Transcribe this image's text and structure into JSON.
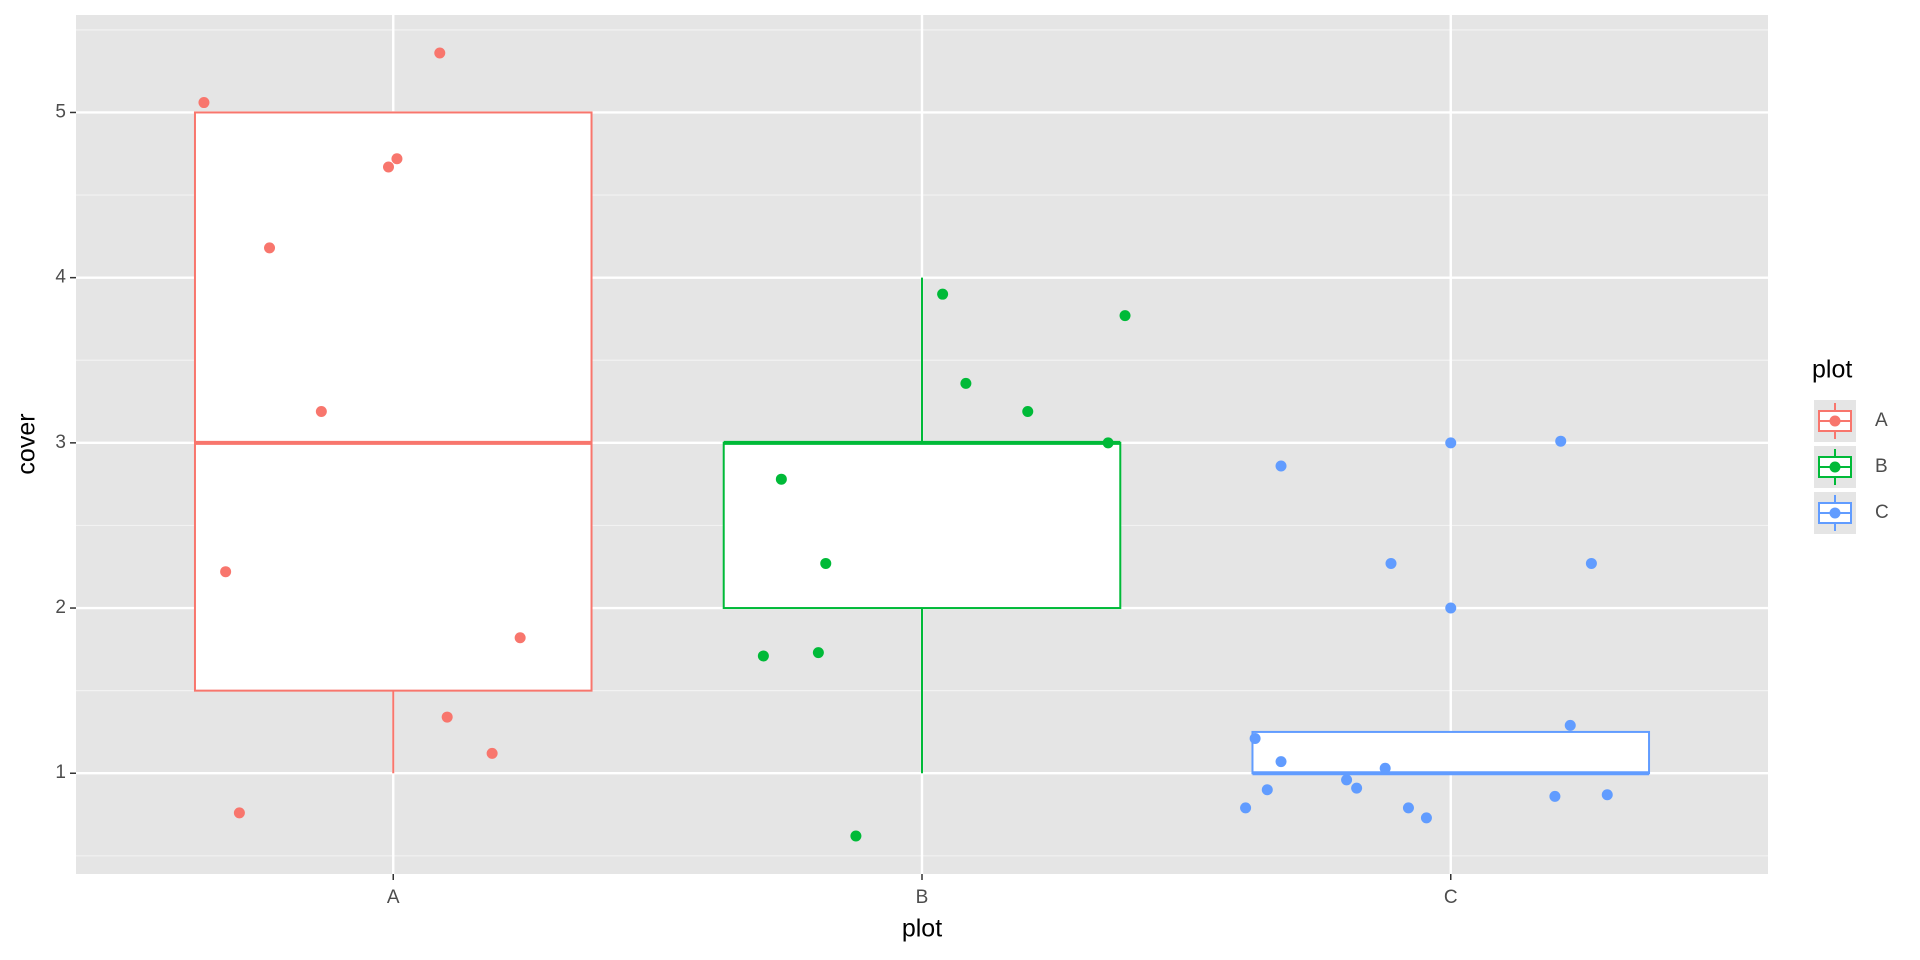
{
  "chart_data": {
    "type": "boxplot",
    "x_label": "plot",
    "y_label": "cover",
    "legend_title": "plot",
    "categories": [
      "A",
      "B",
      "C"
    ],
    "xlim": [
      0.4,
      3.6
    ],
    "ylim": [
      0.39,
      5.59
    ],
    "yticks": [
      1,
      2,
      3,
      4,
      5
    ],
    "minor_yticks": [
      0.5,
      1.5,
      2.5,
      3.5,
      4.5,
      5.5
    ],
    "grid": true,
    "box_width": 0.75,
    "series": [
      {
        "name": "A",
        "color": "#F8766D",
        "box": {
          "whisker_low": 1,
          "q1": 1.5,
          "median": 3,
          "q3": 5,
          "whisker_high": 5
        },
        "points": {
          "x": [
            0.642,
            1.088,
            1.007,
            0.991,
            0.766,
            0.864,
            0.683,
            1.24,
            1.102,
            1.187,
            0.709
          ],
          "values": [
            5.06,
            5.36,
            4.72,
            4.67,
            4.18,
            3.19,
            2.22,
            1.82,
            1.34,
            1.12,
            0.76
          ]
        }
      },
      {
        "name": "B",
        "color": "#00BA38",
        "box": {
          "whisker_low": 1,
          "q1": 2,
          "median": 3,
          "q3": 3,
          "whisker_high": 4
        },
        "points": {
          "x": [
            2.039,
            2.384,
            2.083,
            2.2,
            2.352,
            1.734,
            1.818,
            1.7,
            1.804,
            1.875
          ],
          "values": [
            3.9,
            3.77,
            3.36,
            3.19,
            3.0,
            2.78,
            2.27,
            1.71,
            1.73,
            0.62
          ]
        }
      },
      {
        "name": "C",
        "color": "#619CFF",
        "box": {
          "whisker_low": 1,
          "q1": 1,
          "median": 1,
          "q3": 1.25,
          "whisker_high": 1.25
        },
        "points": {
          "x": [
            2.679,
            3.0,
            3.208,
            2.887,
            3.266,
            3.0,
            3.226,
            2.63,
            2.679,
            2.876,
            2.803,
            2.822,
            2.653,
            2.612,
            2.92,
            2.954,
            3.197,
            3.296
          ],
          "values": [
            2.86,
            3.0,
            3.01,
            2.27,
            2.27,
            2.0,
            1.29,
            1.21,
            1.07,
            1.03,
            0.96,
            0.91,
            0.9,
            0.79,
            0.79,
            0.73,
            0.86,
            0.87
          ]
        }
      }
    ]
  }
}
